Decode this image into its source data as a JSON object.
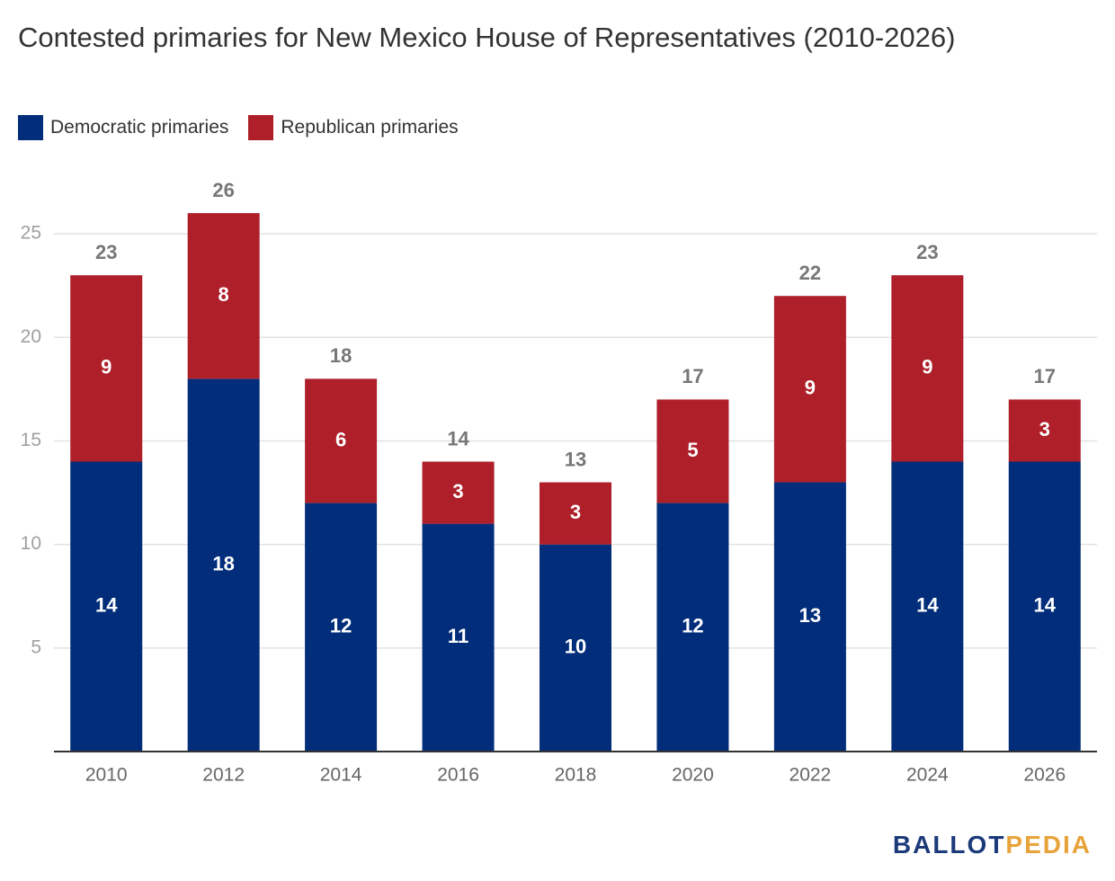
{
  "chart_data": {
    "type": "stacked-bar",
    "title": "Contested primaries for New Mexico House of Representatives (2010-2026)",
    "categories": [
      "2010",
      "2012",
      "2014",
      "2016",
      "2018",
      "2020",
      "2022",
      "2024",
      "2026"
    ],
    "series": [
      {
        "name": "Democratic primaries",
        "color": "#022d7a",
        "values": [
          14,
          18,
          12,
          11,
          10,
          12,
          13,
          14,
          14
        ]
      },
      {
        "name": "Republican primaries",
        "color": "#ae1f2a",
        "values": [
          9,
          8,
          6,
          3,
          3,
          5,
          9,
          9,
          3
        ]
      }
    ],
    "totals": [
      23,
      26,
      18,
      14,
      13,
      17,
      22,
      23,
      17
    ],
    "ylim": [
      0,
      28
    ],
    "yticks": [
      5,
      10,
      15,
      20,
      25
    ],
    "grid": true,
    "legend": "top-left"
  },
  "logo": {
    "first": "BALLOT",
    "second": "PEDIA"
  }
}
